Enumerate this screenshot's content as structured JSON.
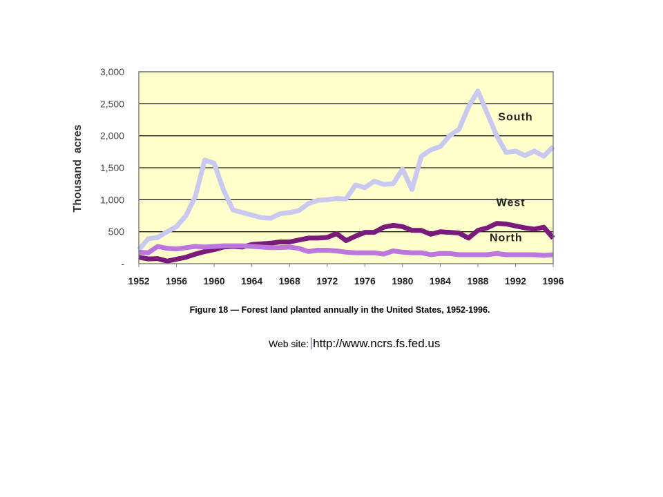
{
  "chart_data": {
    "type": "line",
    "title": "",
    "xlabel": "",
    "ylabel": "Thousand  acres",
    "xlim": [
      1952,
      1996
    ],
    "ylim": [
      0,
      3000
    ],
    "x_ticks": [
      "1952",
      "1956",
      "1960",
      "1964",
      "1968",
      "1972",
      "1976",
      "1980",
      "1984",
      "1988",
      "1992",
      "1996"
    ],
    "y_ticks": [
      {
        "value": 0,
        "label": "-"
      },
      {
        "value": 500,
        "label": "500"
      },
      {
        "value": 1000,
        "label": "1,000"
      },
      {
        "value": 1500,
        "label": "1,500"
      },
      {
        "value": 2000,
        "label": "2,000"
      },
      {
        "value": 2500,
        "label": "2,500"
      },
      {
        "value": 3000,
        "label": "3,000"
      }
    ],
    "grid": "horizontal",
    "background_color": "#ffffcc",
    "x": [
      1952,
      1953,
      1954,
      1955,
      1956,
      1957,
      1958,
      1959,
      1960,
      1961,
      1962,
      1963,
      1964,
      1965,
      1966,
      1967,
      1968,
      1969,
      1970,
      1971,
      1972,
      1973,
      1974,
      1975,
      1976,
      1977,
      1978,
      1979,
      1980,
      1981,
      1982,
      1983,
      1984,
      1985,
      1986,
      1987,
      1988,
      1989,
      1990,
      1991,
      1992,
      1993,
      1994,
      1995,
      1996
    ],
    "series": [
      {
        "name": "South",
        "color": "#c8c8f0",
        "values": [
          220,
          390,
          410,
          500,
          580,
          750,
          1050,
          1620,
          1570,
          1150,
          840,
          800,
          760,
          720,
          710,
          780,
          800,
          830,
          940,
          990,
          1000,
          1020,
          1010,
          1230,
          1190,
          1290,
          1240,
          1250,
          1480,
          1160,
          1680,
          1780,
          1830,
          2000,
          2100,
          2450,
          2700,
          2350,
          2000,
          1740,
          1760,
          1690,
          1760,
          1680,
          1830
        ]
      },
      {
        "name": "West",
        "color": "#7a1a7a",
        "values": [
          100,
          75,
          80,
          40,
          70,
          100,
          150,
          190,
          220,
          260,
          270,
          260,
          300,
          310,
          320,
          340,
          340,
          370,
          400,
          400,
          410,
          470,
          360,
          430,
          490,
          490,
          570,
          600,
          580,
          520,
          520,
          460,
          500,
          490,
          480,
          400,
          520,
          560,
          630,
          620,
          590,
          560,
          540,
          570,
          400
        ]
      },
      {
        "name": "North",
        "color": "#bb77dd",
        "values": [
          180,
          170,
          270,
          240,
          230,
          250,
          270,
          260,
          270,
          280,
          280,
          280,
          270,
          260,
          250,
          250,
          260,
          240,
          190,
          210,
          210,
          200,
          180,
          170,
          170,
          170,
          150,
          200,
          180,
          170,
          170,
          140,
          160,
          160,
          140,
          140,
          140,
          140,
          160,
          140,
          140,
          140,
          140,
          130,
          140
        ]
      }
    ],
    "series_labels": [
      {
        "text": "South",
        "x": 1992,
        "y": 2240
      },
      {
        "text": "West",
        "x": 1991.5,
        "y": 900
      },
      {
        "text": "North",
        "x": 1991,
        "y": 350
      }
    ]
  },
  "caption": "Figure 18 — Forest land planted annually in the United States, 1952-1996.",
  "website": {
    "label": "Web site:",
    "url": "http://www.ncrs.fs.fed.us"
  }
}
